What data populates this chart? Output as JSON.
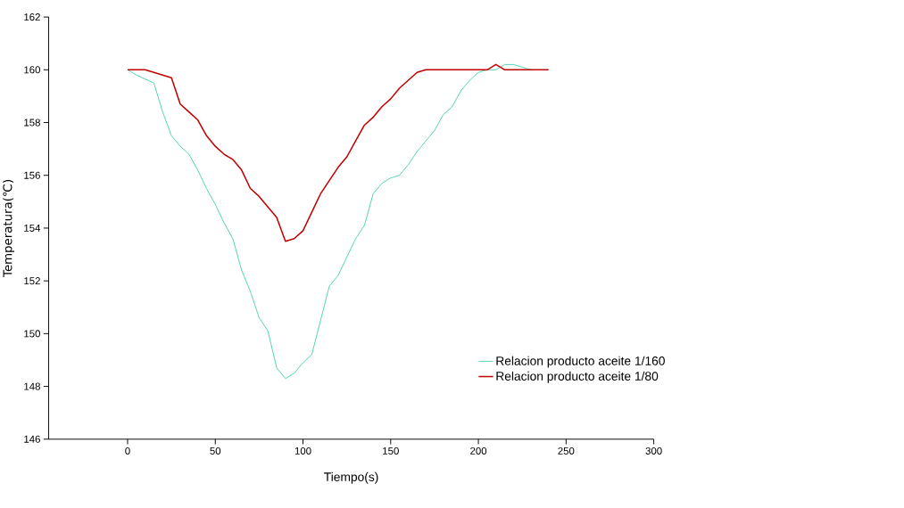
{
  "chart_data": {
    "type": "line",
    "xlabel": "Tiempo(s)",
    "ylabel": "Temperatura(℃)",
    "x": [
      0,
      5,
      10,
      15,
      20,
      25,
      30,
      35,
      40,
      45,
      50,
      55,
      60,
      65,
      70,
      75,
      80,
      85,
      90,
      95,
      100,
      105,
      110,
      115,
      120,
      125,
      130,
      135,
      140,
      145,
      150,
      155,
      160,
      165,
      170,
      175,
      180,
      185,
      190,
      195,
      200,
      205,
      210,
      215,
      220,
      225,
      230,
      235,
      240
    ],
    "xlim": [
      -45,
      300
    ],
    "xticks": [
      0,
      50,
      100,
      150,
      200,
      250,
      300
    ],
    "ylim": [
      146,
      162
    ],
    "yticks": [
      146,
      148,
      150,
      152,
      154,
      156,
      158,
      160,
      162
    ],
    "legend": "bottom right",
    "grid": false,
    "marker": "none",
    "line_style": "solid",
    "series": [
      {
        "name": "Relacion producto aceite 1/160",
        "color": "#20c8a0",
        "values": [
          160,
          159.8,
          159.65,
          159.5,
          158.4,
          157.5,
          157.1,
          156.8,
          156.2,
          155.5,
          154.9,
          154.2,
          153.6,
          152.4,
          151.6,
          150.6,
          150.1,
          148.7,
          148.3,
          148.5,
          148.9,
          149.2,
          150.5,
          151.8,
          152.2,
          152.9,
          153.6,
          154.1,
          155.3,
          155.7,
          155.9,
          156.0,
          156.4,
          156.9,
          157.3,
          157.7,
          158.3,
          158.6,
          159.2,
          159.6,
          159.9,
          160.0,
          160.0,
          160.2,
          160.2,
          160.1,
          160.0,
          null,
          null
        ]
      },
      {
        "name": "Relacion producto aceite 1/80",
        "color": "#c00000",
        "values": [
          160,
          160,
          160,
          159.9,
          159.8,
          159.7,
          158.7,
          158.4,
          158.1,
          157.5,
          157.1,
          156.8,
          156.6,
          156.2,
          155.5,
          155.2,
          154.8,
          154.4,
          153.5,
          153.6,
          153.9,
          154.6,
          155.3,
          155.8,
          156.3,
          156.7,
          157.3,
          157.9,
          158.2,
          158.6,
          158.9,
          159.3,
          159.6,
          159.9,
          160,
          160,
          160,
          160,
          160,
          160,
          160,
          160,
          160.2,
          160,
          160,
          160,
          160,
          160,
          160
        ]
      }
    ]
  }
}
